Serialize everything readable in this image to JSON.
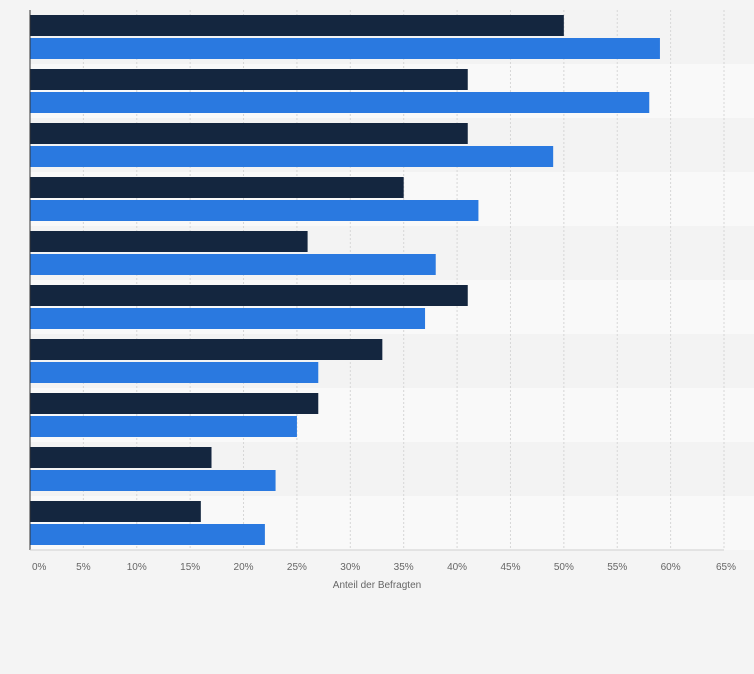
{
  "chart_data": {
    "type": "bar",
    "orientation": "horizontal",
    "categories": [
      "",
      "",
      "",
      "",
      "",
      "",
      "",
      "",
      "",
      ""
    ],
    "series": [
      {
        "color": "#14263f",
        "values": [
          50,
          41,
          41,
          35,
          26,
          41,
          33,
          27,
          17,
          16
        ]
      },
      {
        "color": "#2a79e0",
        "values": [
          59,
          58,
          49,
          42,
          38,
          37,
          27,
          25,
          23,
          22
        ]
      }
    ],
    "xlabel": "Anteil der Befragten",
    "xlim": [
      0,
      65
    ],
    "xticks": [
      "0%",
      "5%",
      "10%",
      "15%",
      "20%",
      "25%",
      "30%",
      "35%",
      "40%",
      "45%",
      "50%",
      "55%",
      "60%",
      "65%"
    ],
    "grid": true,
    "legend": "none"
  }
}
